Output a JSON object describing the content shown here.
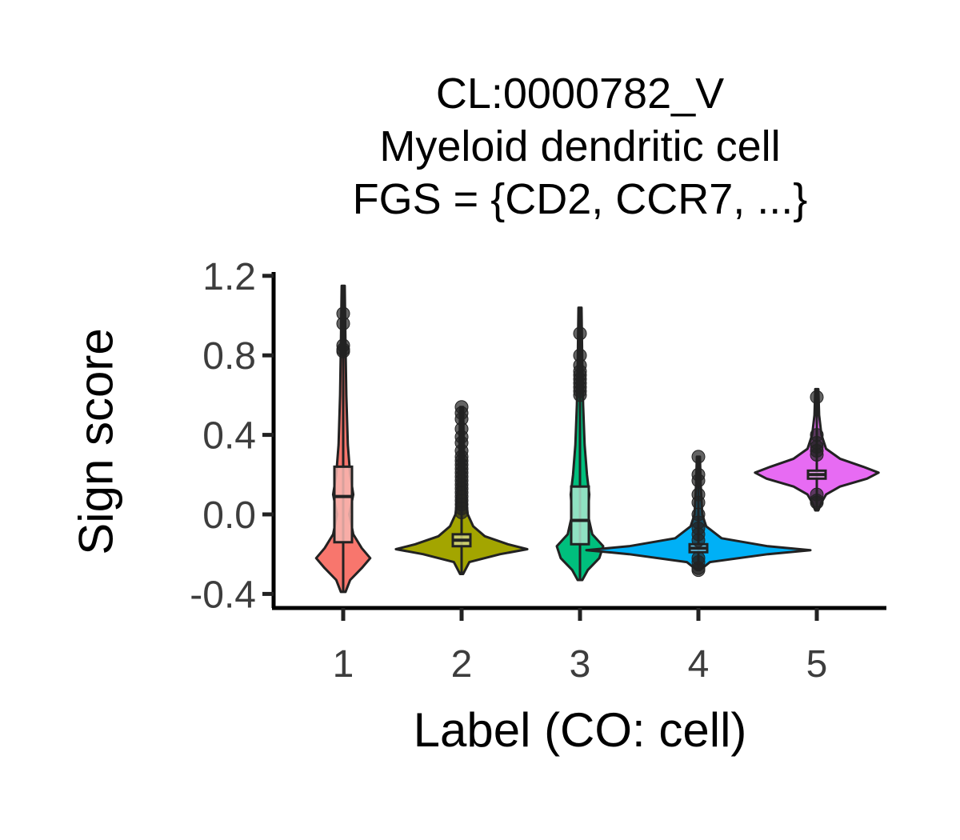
{
  "chart_data": {
    "type": "violin",
    "title_lines": [
      "CL:0000782_V",
      "Myeloid dendritic cell",
      "FGS = {CD2, CCR7, ...}"
    ],
    "xlabel": "Label (CO: cell)",
    "ylabel": "Sign score",
    "categories": [
      "1",
      "2",
      "3",
      "4",
      "5"
    ],
    "ylim": [
      -0.45,
      1.22
    ],
    "yticks": [
      "-0.4",
      "0.0",
      "0.4",
      "0.8",
      "1.2"
    ],
    "grid": false,
    "legend": "none",
    "colors": [
      "#F8766D",
      "#A3A500",
      "#00BF7D",
      "#00B0F6",
      "#E76BF3"
    ],
    "box_fills": [
      "#F8B7B2",
      "#D1D27F",
      "#A8E6CE",
      "#7FD7FA",
      "#F3B5F9"
    ],
    "series": [
      {
        "category": "1",
        "median": 0.09,
        "q1": -0.14,
        "q3": 0.24,
        "whisker_low": -0.39,
        "whisker_high": 1.15,
        "violin_half_width": [
          [
            -0.39,
            0.003
          ],
          [
            -0.33,
            0.009
          ],
          [
            -0.27,
            0.024
          ],
          [
            -0.22,
            0.035
          ],
          [
            -0.17,
            0.024
          ],
          [
            -0.1,
            0.013
          ],
          [
            0.0,
            0.008
          ],
          [
            0.1,
            0.013
          ],
          [
            0.2,
            0.009
          ],
          [
            0.35,
            0.006
          ],
          [
            0.6,
            0.004
          ],
          [
            0.85,
            0.003
          ],
          [
            1.15,
            0.002
          ]
        ],
        "outliers": [
          1.01,
          0.96,
          0.85,
          0.83,
          0.82
        ]
      },
      {
        "category": "2",
        "median": -0.13,
        "q1": -0.16,
        "q3": -0.1,
        "whisker_low": -0.3,
        "whisker_high": 0.54,
        "violin_half_width": [
          [
            -0.3,
            0.002
          ],
          [
            -0.24,
            0.01
          ],
          [
            -0.2,
            0.05
          ],
          [
            -0.175,
            0.085
          ],
          [
            -0.15,
            0.06
          ],
          [
            -0.11,
            0.03
          ],
          [
            -0.06,
            0.015
          ],
          [
            0.0,
            0.008
          ],
          [
            0.1,
            0.005
          ],
          [
            0.3,
            0.003
          ],
          [
            0.54,
            0.002
          ]
        ],
        "outliers": [
          0.54,
          0.51,
          0.48,
          0.43,
          0.39,
          0.36,
          0.32,
          0.29,
          0.27,
          0.25,
          0.23,
          0.21,
          0.19,
          0.17,
          0.15,
          0.13,
          0.11,
          0.09,
          0.07,
          0.05,
          0.03,
          0.01
        ]
      },
      {
        "category": "3",
        "median": -0.03,
        "q1": -0.15,
        "q3": 0.14,
        "whisker_low": -0.33,
        "whisker_high": 1.04,
        "violin_half_width": [
          [
            -0.33,
            0.003
          ],
          [
            -0.28,
            0.01
          ],
          [
            -0.22,
            0.025
          ],
          [
            -0.16,
            0.03
          ],
          [
            -0.1,
            0.016
          ],
          [
            0.0,
            0.01
          ],
          [
            0.1,
            0.012
          ],
          [
            0.2,
            0.009
          ],
          [
            0.35,
            0.006
          ],
          [
            0.55,
            0.004
          ],
          [
            0.75,
            0.003
          ],
          [
            1.04,
            0.002
          ]
        ],
        "outliers": [
          0.91,
          0.8,
          0.75,
          0.72,
          0.7,
          0.68,
          0.66,
          0.64,
          0.62,
          0.6
        ]
      },
      {
        "category": "4",
        "median": -0.17,
        "q1": -0.19,
        "q3": -0.15,
        "whisker_low": -0.28,
        "whisker_high": 0.29,
        "violin_half_width": [
          [
            -0.28,
            0.002
          ],
          [
            -0.24,
            0.015
          ],
          [
            -0.2,
            0.09
          ],
          [
            -0.18,
            0.145
          ],
          [
            -0.16,
            0.09
          ],
          [
            -0.12,
            0.03
          ],
          [
            -0.06,
            0.01
          ],
          [
            0.0,
            0.005
          ],
          [
            0.15,
            0.003
          ],
          [
            0.29,
            0.002
          ]
        ],
        "outliers": [
          0.29,
          0.2,
          0.17,
          0.1,
          0.06,
          0.0,
          -0.04,
          -0.07,
          -0.1,
          -0.13,
          -0.22,
          -0.24,
          -0.27,
          -0.28
        ]
      },
      {
        "category": "5",
        "median": 0.2,
        "q1": 0.18,
        "q3": 0.22,
        "whisker_low": 0.02,
        "whisker_high": 0.63,
        "violin_half_width": [
          [
            0.02,
            0.002
          ],
          [
            0.06,
            0.006
          ],
          [
            0.1,
            0.012
          ],
          [
            0.14,
            0.03
          ],
          [
            0.18,
            0.065
          ],
          [
            0.21,
            0.08
          ],
          [
            0.24,
            0.06
          ],
          [
            0.28,
            0.03
          ],
          [
            0.33,
            0.012
          ],
          [
            0.4,
            0.006
          ],
          [
            0.5,
            0.003
          ],
          [
            0.63,
            0.002
          ]
        ],
        "outliers": [
          0.59,
          0.4,
          0.36,
          0.34,
          0.32,
          0.3,
          0.1,
          0.07,
          0.06
        ]
      }
    ]
  }
}
